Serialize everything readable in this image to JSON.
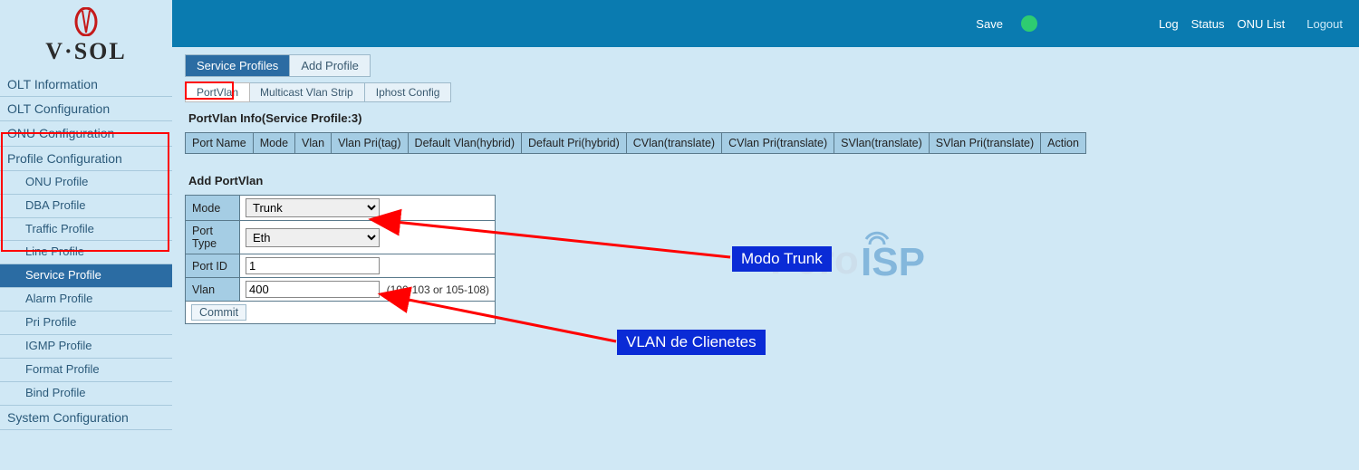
{
  "brand": {
    "name": "V·SOL"
  },
  "topbar": {
    "save": "Save",
    "status_color": "#2ecc71",
    "links": {
      "log": "Log",
      "status": "Status",
      "onu_list": "ONU List",
      "logout": "Logout"
    }
  },
  "sidebar": {
    "items": [
      {
        "label": "OLT Information",
        "type": "item"
      },
      {
        "label": "OLT Configuration",
        "type": "item"
      },
      {
        "label": "ONU Configuration",
        "type": "item"
      },
      {
        "label": "Profile Configuration",
        "type": "item"
      },
      {
        "label": "ONU Profile",
        "type": "sub"
      },
      {
        "label": "DBA Profile",
        "type": "sub"
      },
      {
        "label": "Traffic Profile",
        "type": "sub"
      },
      {
        "label": "Line Profile",
        "type": "sub"
      },
      {
        "label": "Service Profile",
        "type": "sub",
        "selected": true
      },
      {
        "label": "Alarm Profile",
        "type": "sub"
      },
      {
        "label": "Pri Profile",
        "type": "sub"
      },
      {
        "label": "IGMP Profile",
        "type": "sub"
      },
      {
        "label": "Format Profile",
        "type": "sub"
      },
      {
        "label": "Bind Profile",
        "type": "sub"
      },
      {
        "label": "System Configuration",
        "type": "item"
      }
    ]
  },
  "tabs1": [
    {
      "label": "Service Profiles",
      "active": true
    },
    {
      "label": "Add Profile",
      "active": false
    }
  ],
  "tabs2": [
    {
      "label": "PortVlan",
      "active": true
    },
    {
      "label": "Multicast Vlan Strip",
      "active": false
    },
    {
      "label": "Iphost Config",
      "active": false
    }
  ],
  "info_title": "PortVlan Info(Service Profile:3)",
  "info_columns": [
    "Port Name",
    "Mode",
    "Vlan",
    "Vlan Pri(tag)",
    "Default Vlan(hybrid)",
    "Default Pri(hybrid)",
    "CVlan(translate)",
    "CVlan Pri(translate)",
    "SVlan(translate)",
    "SVlan Pri(translate)",
    "Action"
  ],
  "add_title": "Add PortVlan",
  "form": {
    "mode": {
      "label": "Mode",
      "value": "Trunk",
      "options": [
        "Trunk"
      ]
    },
    "port_type": {
      "label": "Port Type",
      "value": "Eth",
      "options": [
        "Eth"
      ]
    },
    "port_id": {
      "label": "Port ID",
      "value": "1"
    },
    "vlan": {
      "label": "Vlan",
      "value": "400",
      "hint": "(100-103 or 105-108)"
    },
    "commit": "Commit"
  },
  "annotations": {
    "callout_mode": "Modo Trunk",
    "callout_vlan": "VLAN de Clienetes",
    "arrow_color": "#ff0000",
    "callout_bg": "#0a2bd6"
  },
  "colors": {
    "sidebar_bg": "#d0e8f5",
    "topbar_bg": "#0a7bb0",
    "active_tab_bg": "#2b6ca3",
    "table_header_bg": "#a5cde4",
    "border": "#5a7a8c"
  }
}
